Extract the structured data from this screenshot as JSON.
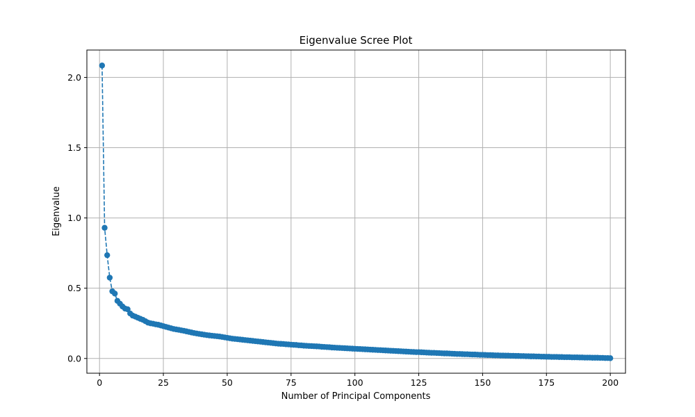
{
  "chart_data": {
    "type": "line",
    "title": "Eigenvalue Scree Plot",
    "xlabel": "Number of Principal Components",
    "ylabel": "Eigenvalue",
    "xlim": [
      -4.95,
      205.95
    ],
    "ylim": [
      -0.105,
      2.195
    ],
    "xticks": [
      0,
      25,
      50,
      75,
      100,
      125,
      150,
      175,
      200
    ],
    "yticks": [
      0.0,
      0.5,
      1.0,
      1.5,
      2.0
    ],
    "xtick_labels": [
      "0",
      "25",
      "50",
      "75",
      "100",
      "125",
      "150",
      "175",
      "200"
    ],
    "ytick_labels": [
      "0.0",
      "0.5",
      "1.0",
      "1.5",
      "2.0"
    ],
    "grid": true,
    "marker": "circle",
    "line_style": "dashed",
    "series": [
      {
        "color": "#1f77b4",
        "x": [
          1,
          2,
          3,
          4,
          5,
          6,
          7,
          8,
          9,
          10,
          11,
          12,
          13,
          14,
          15,
          16,
          17,
          18,
          19,
          20,
          21,
          22,
          23,
          24,
          25,
          26,
          27,
          28,
          29,
          30,
          31,
          32,
          33,
          34,
          35,
          36,
          37,
          38,
          39,
          40,
          41,
          42,
          43,
          44,
          45,
          46,
          47,
          48,
          49,
          50,
          51,
          52,
          53,
          54,
          55,
          56,
          57,
          58,
          59,
          60,
          61,
          62,
          63,
          64,
          65,
          66,
          67,
          68,
          69,
          70,
          71,
          72,
          73,
          74,
          75,
          76,
          77,
          78,
          79,
          80,
          81,
          82,
          83,
          84,
          85,
          86,
          87,
          88,
          89,
          90,
          91,
          92,
          93,
          94,
          95,
          96,
          97,
          98,
          99,
          100,
          101,
          102,
          103,
          104,
          105,
          106,
          107,
          108,
          109,
          110,
          111,
          112,
          113,
          114,
          115,
          116,
          117,
          118,
          119,
          120,
          121,
          122,
          123,
          124,
          125,
          126,
          127,
          128,
          129,
          130,
          131,
          132,
          133,
          134,
          135,
          136,
          137,
          138,
          139,
          140,
          141,
          142,
          143,
          144,
          145,
          146,
          147,
          148,
          149,
          150,
          151,
          152,
          153,
          154,
          155,
          156,
          157,
          158,
          159,
          160,
          161,
          162,
          163,
          164,
          165,
          166,
          167,
          168,
          169,
          170,
          171,
          172,
          173,
          174,
          175,
          176,
          177,
          178,
          179,
          180,
          181,
          182,
          183,
          184,
          185,
          186,
          187,
          188,
          189,
          190,
          191,
          192,
          193,
          194,
          195,
          196,
          197,
          198,
          199,
          200
        ],
        "values": [
          2.085,
          0.93,
          0.735,
          0.575,
          0.478,
          0.462,
          0.41,
          0.39,
          0.37,
          0.355,
          0.35,
          0.32,
          0.305,
          0.298,
          0.29,
          0.282,
          0.275,
          0.265,
          0.255,
          0.25,
          0.247,
          0.243,
          0.24,
          0.235,
          0.23,
          0.225,
          0.22,
          0.215,
          0.21,
          0.207,
          0.204,
          0.2,
          0.197,
          0.193,
          0.189,
          0.185,
          0.181,
          0.178,
          0.175,
          0.172,
          0.169,
          0.166,
          0.164,
          0.162,
          0.16,
          0.158,
          0.156,
          0.153,
          0.15,
          0.147,
          0.144,
          0.141,
          0.139,
          0.137,
          0.135,
          0.133,
          0.131,
          0.129,
          0.127,
          0.125,
          0.123,
          0.121,
          0.119,
          0.117,
          0.115,
          0.113,
          0.111,
          0.109,
          0.107,
          0.105,
          0.104,
          0.103,
          0.101,
          0.1,
          0.098,
          0.097,
          0.096,
          0.094,
          0.093,
          0.091,
          0.09,
          0.089,
          0.088,
          0.087,
          0.086,
          0.085,
          0.083,
          0.082,
          0.081,
          0.08,
          0.078,
          0.077,
          0.076,
          0.075,
          0.074,
          0.073,
          0.072,
          0.071,
          0.07,
          0.069,
          0.068,
          0.067,
          0.066,
          0.065,
          0.064,
          0.063,
          0.062,
          0.061,
          0.06,
          0.059,
          0.058,
          0.057,
          0.056,
          0.055,
          0.054,
          0.053,
          0.052,
          0.051,
          0.05,
          0.049,
          0.048,
          0.047,
          0.046,
          0.045,
          0.045,
          0.044,
          0.043,
          0.042,
          0.041,
          0.04,
          0.04,
          0.039,
          0.038,
          0.037,
          0.036,
          0.036,
          0.035,
          0.034,
          0.033,
          0.032,
          0.032,
          0.031,
          0.03,
          0.03,
          0.029,
          0.028,
          0.028,
          0.027,
          0.026,
          0.026,
          0.025,
          0.024,
          0.024,
          0.023,
          0.022,
          0.022,
          0.021,
          0.021,
          0.02,
          0.02,
          0.019,
          0.019,
          0.018,
          0.018,
          0.017,
          0.017,
          0.016,
          0.016,
          0.015,
          0.015,
          0.014,
          0.014,
          0.013,
          0.013,
          0.012,
          0.012,
          0.011,
          0.011,
          0.011,
          0.01,
          0.01,
          0.009,
          0.009,
          0.009,
          0.008,
          0.008,
          0.008,
          0.007,
          0.007,
          0.006,
          0.006,
          0.006,
          0.005,
          0.005,
          0.005,
          0.004,
          0.004,
          0.003,
          0.003,
          0.002
        ]
      }
    ]
  }
}
